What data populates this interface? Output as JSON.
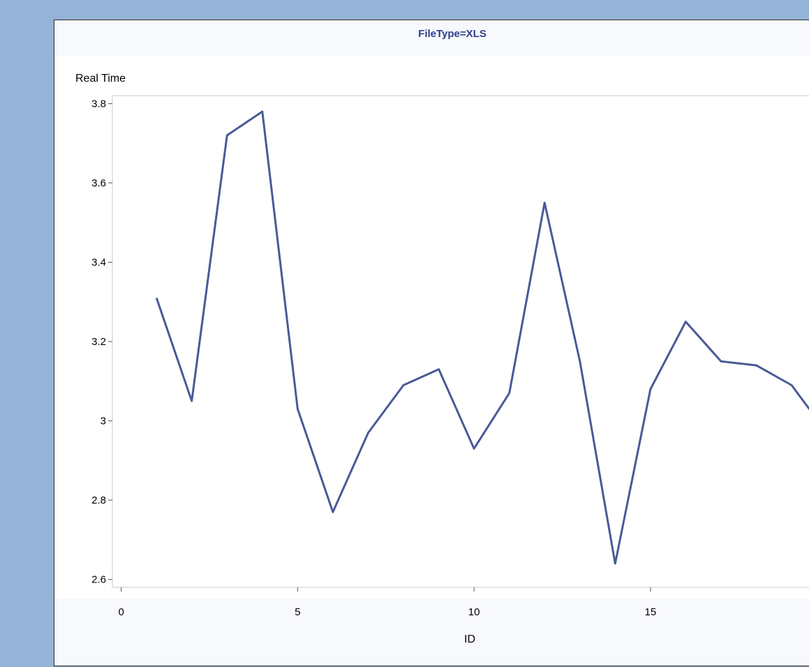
{
  "chart_data": {
    "type": "line",
    "title": "FileType=XLS",
    "ylabel": "Real Time",
    "xlabel": "ID",
    "xlim": [
      -0.25,
      19.75
    ],
    "ylim": [
      2.58,
      3.82
    ],
    "x_ticks": [
      0,
      5,
      10,
      15
    ],
    "y_ticks": [
      2.6,
      2.8,
      3.0,
      3.2,
      3.4,
      3.6,
      3.8
    ],
    "y_tick_labels": [
      "2.6",
      "2.8",
      "3",
      "3.2",
      "3.4",
      "3.6",
      "3.8"
    ],
    "grid": false,
    "colors": {
      "line": "#4a5a96",
      "page_background": "#95b3d7",
      "panel_background": "#f7f9fd",
      "title": "#2c3e8a"
    },
    "series": [
      {
        "x": [
          1,
          2,
          3,
          4,
          5,
          6,
          7,
          8,
          9,
          10,
          11,
          12,
          13,
          14,
          15,
          16,
          17,
          18,
          19,
          19.75
        ],
        "values": [
          3.31,
          3.05,
          3.72,
          3.78,
          3.03,
          2.77,
          2.97,
          3.09,
          3.13,
          2.93,
          3.07,
          3.55,
          3.15,
          2.64,
          3.08,
          3.25,
          3.15,
          3.14,
          3.09,
          3.0
        ]
      }
    ]
  }
}
